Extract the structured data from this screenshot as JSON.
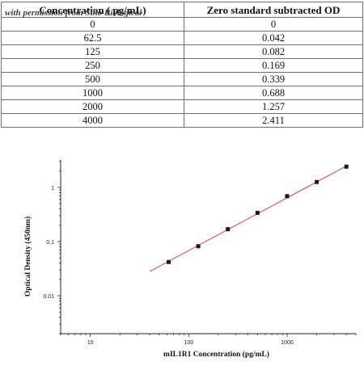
{
  "table": {
    "headers": [
      "Concentration ( pg/mL)",
      "Zero standard subtracted OD"
    ],
    "rows": [
      [
        "0",
        "0"
      ],
      [
        "62.5",
        "0.042"
      ],
      [
        "125",
        "0.082"
      ],
      [
        "250",
        "0.169"
      ],
      [
        "500",
        "0.339"
      ],
      [
        "1000",
        "0.688"
      ],
      [
        "2000",
        "1.257"
      ],
      [
        "4000",
        "2.411"
      ]
    ],
    "watermark": "with permission from Sino Biological"
  },
  "chart_data": {
    "type": "scatter",
    "x_scale": "log",
    "y_scale": "log",
    "xlabel": "mIL1R1 Concentration (pg/mL)",
    "ylabel": "Optical Density (450nm)",
    "xlim": [
      5,
      5000
    ],
    "ylim": [
      0.002,
      3.2
    ],
    "x_ticks": [
      {
        "value": 10,
        "label": "10"
      },
      {
        "value": 100,
        "label": "100"
      },
      {
        "value": 1000,
        "label": "1000"
      }
    ],
    "y_ticks": [
      {
        "value": 0.01,
        "label": "0.01"
      },
      {
        "value": 0.1,
        "label": "0.1"
      },
      {
        "value": 1,
        "label": "1"
      }
    ],
    "series": [
      {
        "x": [
          62.5,
          125,
          250,
          500,
          1000,
          2000,
          4000
        ],
        "y": [
          0.042,
          0.082,
          0.169,
          0.339,
          0.688,
          1.257,
          2.411
        ],
        "marker_color": "#1a1a1a"
      }
    ],
    "fit_line": {
      "x": [
        40,
        4200
      ],
      "y": [
        0.028,
        2.6
      ],
      "color": "#e04040"
    },
    "grid": false,
    "legend": "none"
  }
}
